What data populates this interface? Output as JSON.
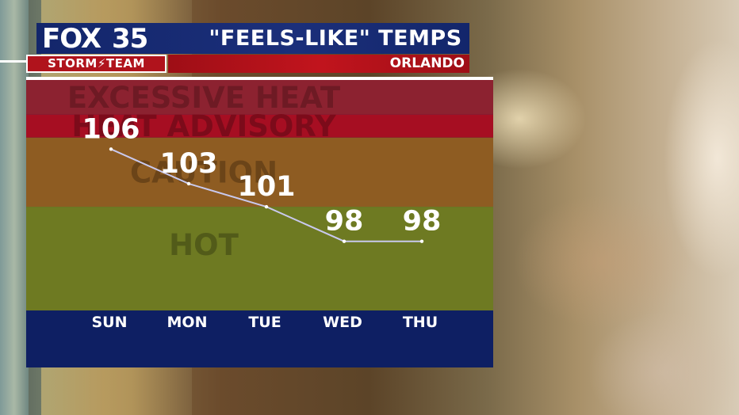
{
  "header": {
    "logo_fox": "FOX",
    "logo_number": "35",
    "title": "\"FEELS-LIKE\" TEMPS",
    "location": "ORLANDO",
    "storm_left": "STORM",
    "storm_bolt_icon": "lightning-bolt-icon",
    "storm_right": "TEAM"
  },
  "colors": {
    "header_blue": "#1b2f7a",
    "header_red": "#c1141d",
    "chart_base": "#0e1f63",
    "line": "#c9c9ee"
  },
  "chart_data": {
    "type": "line",
    "title": "\"FEELS-LIKE\" TEMPS",
    "subtitle": "ORLANDO",
    "categories": [
      "SUN",
      "MON",
      "TUE",
      "WED",
      "THU"
    ],
    "values": [
      106,
      103,
      101,
      98,
      98
    ],
    "ylim": [
      92,
      112
    ],
    "grid": false,
    "bands": [
      {
        "label": "EXCESSIVE HEAT",
        "from": 109,
        "to": 112,
        "color": "#8c2230",
        "text_color": "#6e1a24"
      },
      {
        "label": "HEAT ADVISORY",
        "from": 107,
        "to": 109,
        "color": "#a60e22",
        "text_color": "#7c0b1a"
      },
      {
        "label": "CAUTION",
        "from": 101,
        "to": 107,
        "color": "#8e5c22",
        "text_color": "#6b4418"
      },
      {
        "label": "HOT",
        "from": 92,
        "to": 101,
        "color": "#6e7a22",
        "text_color": "#525b19"
      }
    ]
  }
}
